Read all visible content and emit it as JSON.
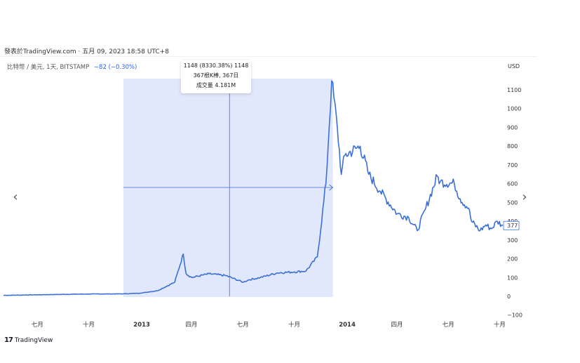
{
  "header": {
    "published_text": "發表於TradingView.com · 五月 09, 2023 18:58 UTC+8"
  },
  "legend": {
    "symbol": "比特幣 / 美元, 1天, BITSTAMP",
    "change": "−82 (−0.30%)",
    "currency": "USD"
  },
  "tooltip": {
    "line1": "1148 (8330.38%) 1148",
    "line2": "367根K棒, 367日",
    "line3": "成交量 4.181M"
  },
  "nav": {
    "prev_icon": "‹",
    "next_icon": "›"
  },
  "footer": {
    "logo_mark": "17",
    "brand": "TradingView"
  },
  "colors": {
    "line": "#3a6fd8",
    "highlight": "#dde4fb",
    "crosshair": "#3a6fd8",
    "price_label_border": "#3a6fd8"
  },
  "chart_data": {
    "type": "line",
    "title": "",
    "series": [
      {
        "values_x": [
          "2012-05",
          "2012-07",
          "2012-09",
          "2012-10",
          "2012-12",
          "2013-01",
          "2013-02",
          "2013-03",
          "2013-04",
          "2013-04b",
          "2013-04c",
          "2013-05",
          "2013-06",
          "2013-07",
          "2013-07b",
          "2013-08",
          "2013-09",
          "2013-10",
          "2013-10b",
          "2013-11",
          "2013-11b",
          "2013-11c",
          "2013-12",
          "2013-12b",
          "2013-12c",
          "2014-01",
          "2014-01b",
          "2014-02",
          "2014-03",
          "2014-04",
          "2014-04b",
          "2014-05",
          "2014-05b",
          "2014-06",
          "2014-07",
          "2014-08",
          "2014-09",
          "2014-09b",
          "2014-10",
          "2014-10b",
          "2014-11",
          "2014-11b",
          "2014-12"
        ],
        "x_days": [
          0,
          60,
          120,
          150,
          210,
          240,
          270,
          300,
          315,
          320,
          330,
          360,
          390,
          420,
          430,
          450,
          480,
          510,
          530,
          550,
          565,
          575,
          585,
          592,
          598,
          625,
          640,
          660,
          690,
          710,
          725,
          740,
          760,
          765,
          790,
          800,
          815,
          820,
          835,
          845,
          855,
          865,
          875
        ],
        "y": [
          5,
          8,
          11,
          12,
          13,
          17,
          30,
          75,
          225,
          120,
          100,
          120,
          110,
          75,
          88,
          100,
          125,
          130,
          135,
          210,
          600,
          1148,
          900,
          650,
          750,
          800,
          650,
          560,
          440,
          420,
          350,
          470,
          640,
          610,
          600,
          520,
          470,
          400,
          350,
          380,
          360,
          400,
          377
        ]
      }
    ],
    "x_tick_labels": [
      "七月",
      "十月",
      "2013",
      "四月",
      "七月",
      "十月",
      "2014",
      "四月",
      "七月",
      "十月"
    ],
    "y_ticks": [
      -100,
      0,
      100,
      200,
      300,
      400,
      500,
      600,
      700,
      800,
      900,
      1000,
      1100
    ],
    "y_tick_labels": [
      "−100",
      "0",
      "100",
      "200",
      "300",
      "400",
      "500",
      "600",
      "700",
      "800",
      "900",
      "1000",
      "1100"
    ],
    "ylim": [
      -100,
      1200
    ],
    "last_price_label": "377",
    "highlight_range_days": [
      210,
      577
    ],
    "crosshair": {
      "x_day": 396,
      "y": 580
    }
  }
}
